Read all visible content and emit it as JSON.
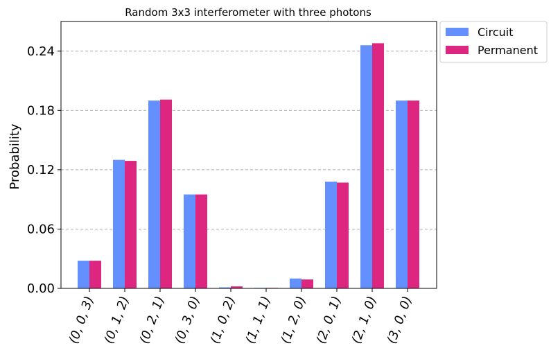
{
  "chart_data": {
    "type": "bar",
    "title": "Random 3x3 interferometer with three photons",
    "xlabel": "",
    "ylabel": "Probability",
    "ylim": [
      0,
      0.27
    ],
    "yticks": [
      "0.00",
      "0.06",
      "0.12",
      "0.18",
      "0.24"
    ],
    "ytick_values": [
      0,
      0.06,
      0.12,
      0.18,
      0.24
    ],
    "grid": "horizontal-dashed",
    "legend_position": "outside-top-right",
    "categories": [
      "(0, 0, 3)",
      "(0, 1, 2)",
      "(0, 2, 1)",
      "(0, 3, 0)",
      "(1, 0, 2)",
      "(1, 1, 1)",
      "(1, 2, 0)",
      "(2, 0, 1)",
      "(2, 1, 0)",
      "(3, 0, 0)"
    ],
    "series": [
      {
        "name": "Circuit",
        "color": "#648fff",
        "values": [
          0.028,
          0.13,
          0.19,
          0.095,
          0.001,
          0.0005,
          0.01,
          0.108,
          0.246,
          0.19
        ]
      },
      {
        "name": "Permanent",
        "color": "#dc267f",
        "values": [
          0.028,
          0.129,
          0.191,
          0.095,
          0.002,
          0.0005,
          0.009,
          0.107,
          0.248,
          0.19
        ]
      }
    ]
  }
}
